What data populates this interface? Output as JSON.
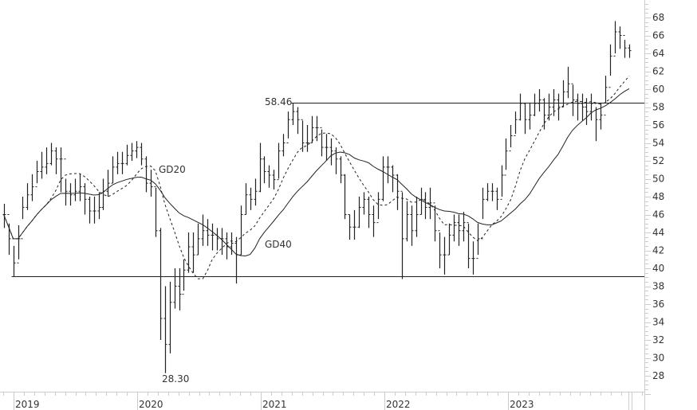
{
  "chart_data": {
    "type": "ohlc",
    "title": "",
    "xlabel": "",
    "ylabel": "",
    "ylim": [
      26,
      69.5
    ],
    "y_ticks": [
      28,
      30,
      32,
      34,
      36,
      38,
      40,
      42,
      44,
      46,
      48,
      50,
      52,
      54,
      56,
      58,
      60,
      62,
      64,
      66,
      68
    ],
    "x_ticks": [
      "2019",
      "2020",
      "2021",
      "2022",
      "2023"
    ],
    "y_axis_position": "right",
    "grid": false,
    "colors": {
      "bars": "#222222",
      "lines": "#222222",
      "axis": "#cccccc",
      "text": "#333333"
    },
    "dates": [
      "2018-11-26",
      "2018-12-10",
      "2018-12-24",
      "2019-01-07",
      "2019-01-21",
      "2019-02-04",
      "2019-02-18",
      "2019-03-04",
      "2019-03-18",
      "2019-04-01",
      "2019-04-15",
      "2019-04-29",
      "2019-05-13",
      "2019-05-27",
      "2019-06-10",
      "2019-06-24",
      "2019-07-08",
      "2019-07-22",
      "2019-08-05",
      "2019-08-19",
      "2019-09-02",
      "2019-09-16",
      "2019-09-30",
      "2019-10-14",
      "2019-10-28",
      "2019-11-11",
      "2019-11-25",
      "2019-12-09",
      "2019-12-23",
      "2020-01-06",
      "2020-01-20",
      "2020-02-03",
      "2020-02-17",
      "2020-03-02",
      "2020-03-16",
      "2020-03-30",
      "2020-04-13",
      "2020-04-27",
      "2020-05-11",
      "2020-05-25",
      "2020-06-08",
      "2020-06-22",
      "2020-07-06",
      "2020-07-20",
      "2020-08-03",
      "2020-08-17",
      "2020-08-31",
      "2020-09-14",
      "2020-09-28",
      "2020-10-12",
      "2020-10-26",
      "2020-11-09",
      "2020-11-23",
      "2020-12-07",
      "2020-12-21",
      "2021-01-04",
      "2021-01-18",
      "2021-02-01",
      "2021-02-15",
      "2021-03-01",
      "2021-03-15",
      "2021-03-29",
      "2021-04-12",
      "2021-04-26",
      "2021-05-10",
      "2021-05-24",
      "2021-06-07",
      "2021-06-21",
      "2021-07-05",
      "2021-07-19",
      "2021-08-02",
      "2021-08-16",
      "2021-08-30",
      "2021-09-13",
      "2021-09-27",
      "2021-10-11",
      "2021-10-25",
      "2021-11-08",
      "2021-11-22",
      "2021-12-06",
      "2021-12-20",
      "2022-01-03",
      "2022-01-17",
      "2022-01-31",
      "2022-02-14",
      "2022-02-28",
      "2022-03-14",
      "2022-03-28",
      "2022-04-11",
      "2022-04-25",
      "2022-05-09",
      "2022-05-23",
      "2022-06-06",
      "2022-06-20",
      "2022-07-04",
      "2022-07-18",
      "2022-08-01",
      "2022-08-15",
      "2022-08-29",
      "2022-09-12",
      "2022-09-26",
      "2022-10-10",
      "2022-10-24",
      "2022-11-07",
      "2022-11-21",
      "2022-12-05",
      "2022-12-19",
      "2023-01-02",
      "2023-01-16",
      "2023-01-30",
      "2023-02-13",
      "2023-02-27",
      "2023-03-13",
      "2023-03-27",
      "2023-04-10",
      "2023-04-24",
      "2023-05-08",
      "2023-05-22",
      "2023-06-05",
      "2023-06-19",
      "2023-07-03",
      "2023-07-17",
      "2023-07-31",
      "2023-08-14",
      "2023-08-28",
      "2023-09-11",
      "2023-09-25",
      "2023-10-09",
      "2023-10-23",
      "2023-11-06",
      "2023-11-20",
      "2023-12-04",
      "2023-12-18"
    ],
    "close": [
      46,
      43.3,
      40.6,
      43.3,
      46.8,
      48.2,
      49.1,
      50.8,
      51.3,
      51.7,
      53.1,
      52.2,
      52.2,
      48.6,
      48.2,
      48.6,
      49.1,
      47.7,
      46.4,
      46.4,
      46.8,
      48.6,
      49.5,
      51.3,
      51.7,
      51.7,
      52.6,
      53.1,
      53.5,
      52.2,
      49.5,
      49.1,
      44.2,
      34.4,
      31.5,
      36.2,
      38,
      37.1,
      39.8,
      42.4,
      41.5,
      43.3,
      44.2,
      43.7,
      43.7,
      43.3,
      43.3,
      42.4,
      42.8,
      41.5,
      46,
      48.2,
      47.7,
      48.6,
      52.2,
      50.8,
      50.4,
      49.9,
      53.1,
      54,
      56.6,
      57.5,
      56.6,
      54,
      54,
      55.7,
      55.7,
      53.5,
      53.5,
      53.1,
      52.2,
      50.4,
      46,
      44.6,
      44.6,
      46.8,
      47.7,
      46,
      45.1,
      47.7,
      51.3,
      51.3,
      50.4,
      48.6,
      43.3,
      46,
      44.2,
      46,
      47.7,
      46.8,
      47.3,
      44.2,
      41.5,
      41.5,
      43.7,
      45.1,
      44.2,
      45.1,
      41.1,
      41.1,
      43.3,
      47.7,
      48.6,
      48.6,
      47.7,
      50.4,
      53.1,
      54.8,
      56.6,
      58.4,
      56.6,
      57.1,
      58.4,
      58.8,
      57.1,
      58,
      58.8,
      58,
      59.7,
      60.6,
      58.8,
      58.4,
      58,
      57.5,
      58.4,
      56.6,
      57.1,
      60.2,
      63.7,
      66.4,
      66,
      64.6,
      64.3
    ],
    "high": [
      47.2,
      45,
      42.5,
      44.8,
      48,
      49.5,
      50.5,
      52,
      53,
      53.5,
      54,
      53.5,
      53.5,
      50,
      49.5,
      50,
      50.5,
      49.5,
      48,
      48,
      48.5,
      50,
      51,
      52.5,
      53,
      53,
      53.8,
      54,
      54.2,
      54,
      52.5,
      51,
      49,
      44.5,
      38,
      38.5,
      40,
      40,
      41,
      44,
      44,
      45,
      46,
      45.5,
      45,
      44.5,
      44.5,
      44,
      44,
      43.5,
      47,
      49.5,
      49,
      50,
      54,
      52.5,
      51.5,
      51,
      54,
      55,
      57.5,
      58.46,
      58,
      56.5,
      56,
      57,
      57,
      55.5,
      55,
      54.5,
      53.5,
      52.5,
      50.5,
      46,
      46.5,
      48,
      48.5,
      48,
      47,
      48.5,
      52.5,
      52.5,
      51.5,
      50.5,
      48.5,
      47.5,
      47,
      48,
      49,
      48.5,
      49,
      47,
      44,
      43.5,
      45,
      46,
      46,
      46.3,
      45,
      43,
      45,
      49,
      49.5,
      49.5,
      49,
      51.5,
      54.5,
      56,
      57.5,
      59.5,
      58.5,
      58.5,
      59.5,
      60,
      59,
      59.5,
      60,
      59.5,
      61,
      62.5,
      60.5,
      59.5,
      59.5,
      59,
      59.5,
      58,
      58.5,
      61.5,
      65,
      67.6,
      67,
      65.5,
      65
    ],
    "low": [
      44.5,
      41.5,
      39.1,
      41,
      45.5,
      46.5,
      47.5,
      49.5,
      50,
      50.5,
      51.5,
      50.5,
      48.5,
      47,
      47,
      47.5,
      47.5,
      46,
      45,
      45,
      45.5,
      46.5,
      48,
      49.5,
      50.5,
      50.5,
      51.5,
      52,
      52.3,
      51.5,
      48.5,
      48,
      43.5,
      32,
      28.3,
      30.5,
      35.5,
      35.3,
      37.5,
      39.5,
      39.5,
      41.5,
      42.5,
      42.5,
      42,
      42,
      41.5,
      41,
      41.5,
      38.3,
      41.5,
      46,
      46.5,
      47,
      48.5,
      49.5,
      49,
      48.8,
      50,
      52.5,
      54.5,
      56,
      55,
      53,
      53,
      54,
      54.2,
      52.5,
      52,
      51.5,
      50.5,
      49.5,
      45.5,
      43.2,
      43.2,
      44.5,
      46,
      44.5,
      43.5,
      45.5,
      47.5,
      49.5,
      48.5,
      46.5,
      38.8,
      43,
      42.5,
      43.5,
      46,
      45.5,
      45.5,
      43,
      40,
      39.3,
      41.5,
      43,
      42.5,
      43,
      40,
      39.3,
      41.5,
      45.5,
      47.5,
      47.5,
      46.5,
      48,
      51,
      53.5,
      55,
      56.5,
      55,
      55.5,
      57,
      57.5,
      55.5,
      56.5,
      57,
      56.5,
      58,
      59,
      57,
      56.5,
      56.5,
      56,
      56.5,
      54.2,
      55.5,
      58.5,
      61.5,
      64,
      64.5,
      63.5,
      63.5
    ],
    "moving_averages": [
      {
        "name": "GD20",
        "style": "dashed"
      },
      {
        "name": "GD40",
        "style": "solid"
      }
    ],
    "horizontal_lines": [
      {
        "value": 58.46,
        "from": "2021-03-29",
        "label": "58.46"
      },
      {
        "value": 39.1,
        "from": "2018-12-24"
      }
    ],
    "annotations": [
      {
        "text": "28.30",
        "date": "2020-03-16",
        "value": 28.3
      }
    ]
  }
}
